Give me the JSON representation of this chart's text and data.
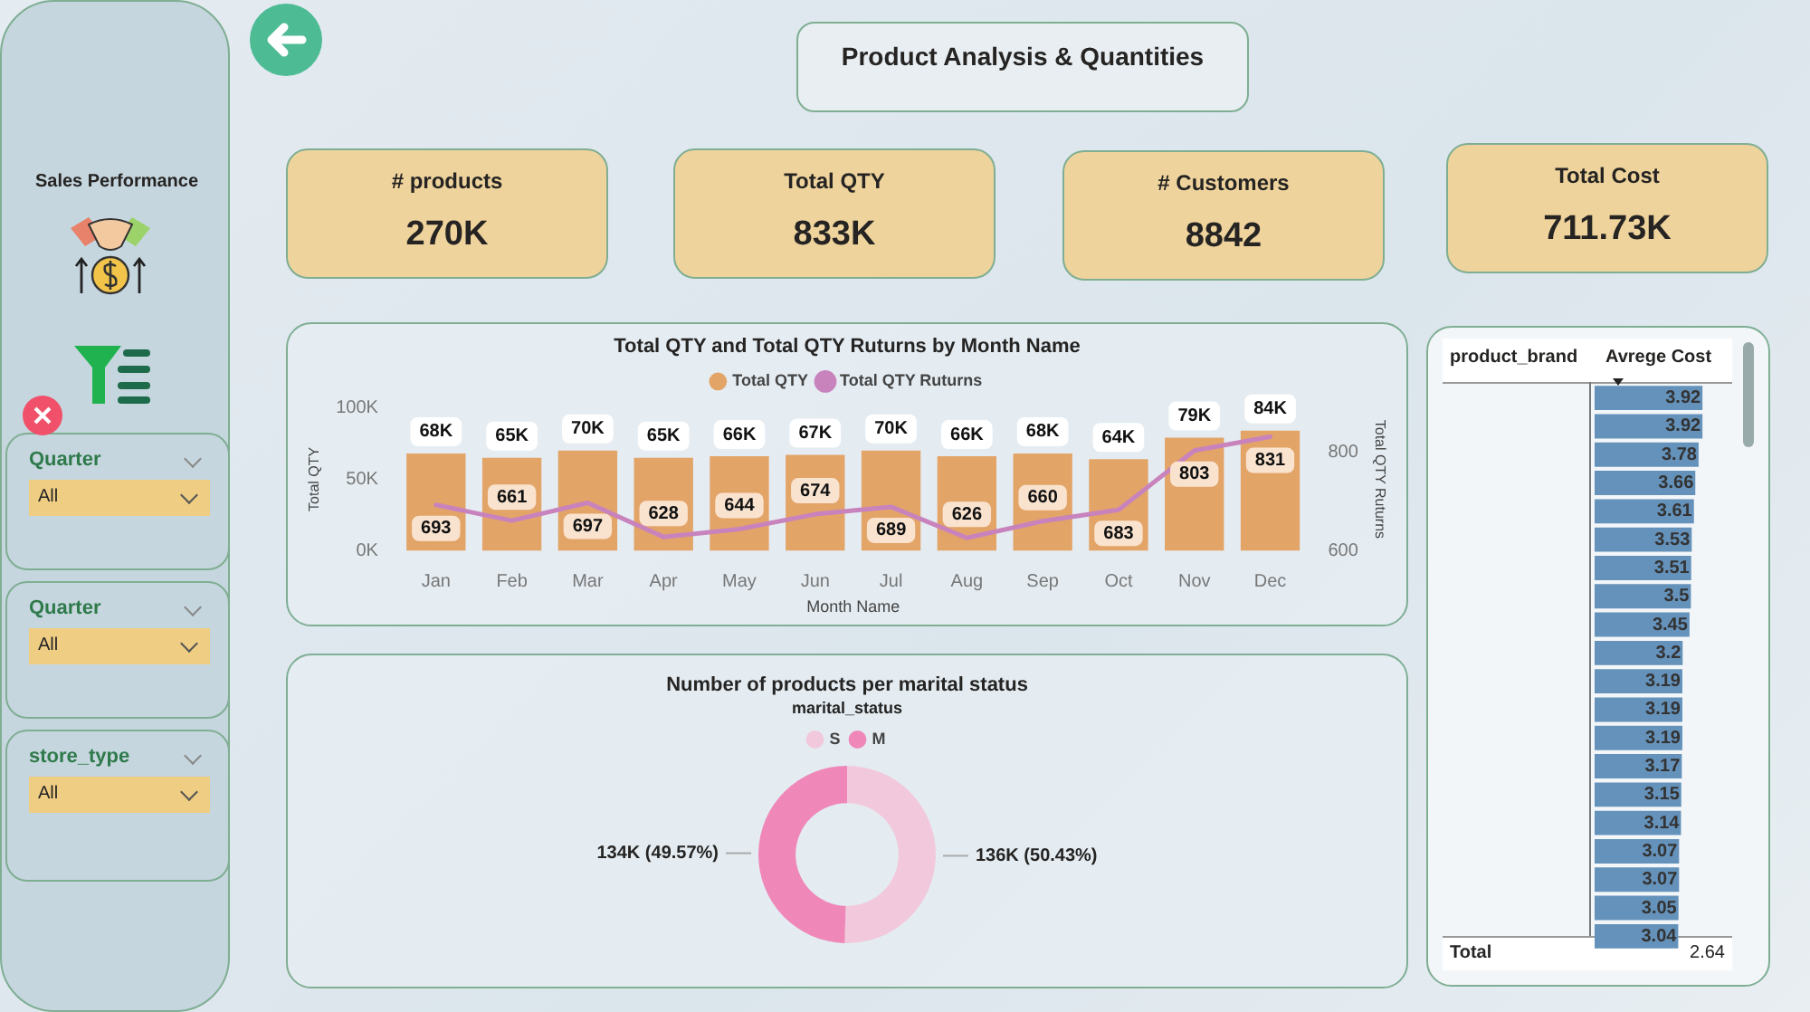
{
  "chart_data": [
    {
      "type": "other",
      "title": "Sales Performance",
      "annotations": [
        "Quarter",
        "All",
        "Quarter",
        "All",
        "store_type",
        "All"
      ]
    },
    {
      "type": "other",
      "title": "Product Analysis & Quantities",
      "annotations": [
        "# products",
        "270K",
        "Total QTY",
        "833K",
        "# Customers",
        "8842",
        "Total Cost",
        "711.73K"
      ]
    },
    {
      "type": "bar",
      "title": "Total QTY and Total QTY Ruturns by Month Name",
      "xlabel": "Month Name",
      "ylabel": "Total QTY",
      "y2label": "Total QTY Ruturns",
      "legend": "top",
      "categories": [
        "Jan",
        "Feb",
        "Mar",
        "Apr",
        "May",
        "Jun",
        "Jul",
        "Aug",
        "Sep",
        "Oct",
        "Nov",
        "Dec"
      ],
      "series": [
        {
          "name": "Total QTY",
          "type": "bar",
          "color": "#e3a468",
          "values": [
            68000,
            65000,
            70000,
            65000,
            66000,
            67000,
            70000,
            66000,
            68000,
            64000,
            79000,
            84000
          ],
          "value_labels": [
            "68K",
            "65K",
            "70K",
            "65K",
            "66K",
            "67K",
            "70K",
            "66K",
            "68K",
            "64K",
            "79K",
            "84K"
          ]
        },
        {
          "name": "Total QTY Ruturns",
          "type": "line",
          "axis": "y2",
          "color": "#c883bd",
          "values": [
            693,
            661,
            697,
            628,
            644,
            674,
            689,
            626,
            660,
            683,
            803,
            831
          ],
          "value_labels": [
            "693",
            "661",
            "697",
            "628",
            "644",
            "674",
            "689",
            "626",
            "660",
            "683",
            "803",
            "831"
          ]
        }
      ],
      "ylim": [
        0,
        100000
      ],
      "yticks": [
        {
          "value": 0,
          "label": "0K"
        },
        {
          "value": 50000,
          "label": "50K"
        },
        {
          "value": 100000,
          "label": "100K"
        }
      ],
      "y2lim": [
        600,
        890
      ],
      "y2ticks": [
        600,
        800
      ]
    },
    {
      "type": "bar",
      "orientation": "horizontal",
      "ylabel": "product_brand",
      "xlabel": "Avrege Cost",
      "tick_labels": false,
      "data_labels": true,
      "color": "#6592bb",
      "categories": [
        null,
        null,
        null,
        null,
        null,
        null,
        null,
        null,
        null,
        null,
        null,
        null,
        null,
        null,
        null,
        null,
        null,
        null,
        null,
        null
      ],
      "values": [
        3.92,
        3.92,
        3.78,
        3.66,
        3.61,
        3.53,
        3.51,
        3.5,
        3.45,
        3.2,
        3.19,
        3.19,
        3.19,
        3.17,
        3.15,
        3.14,
        3.07,
        3.07,
        3.05,
        3.04
      ],
      "annotations": [
        "Total",
        "2.64"
      ]
    },
    {
      "type": "donut",
      "title": "Number of products per marital status",
      "legend": "top",
      "legend_title": "marital_status",
      "categories": [
        "S",
        "M"
      ],
      "values": [
        50.43,
        49.57
      ],
      "colors": [
        "#f2c9dc",
        "#ef88b9"
      ],
      "value_labels": [
        "136K (50.43%)",
        "134K (49.57%)"
      ]
    }
  ]
}
